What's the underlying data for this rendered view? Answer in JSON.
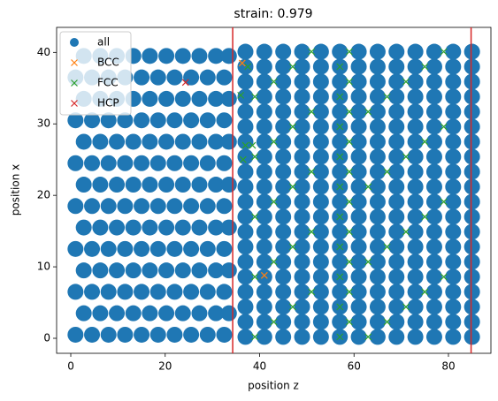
{
  "chart_data": {
    "type": "scatter",
    "title": "strain: 0.979",
    "xlabel": "position z",
    "ylabel": "position x",
    "xlim": [
      -3,
      89
    ],
    "ylim": [
      -2.1,
      43.5
    ],
    "xticks": [
      0,
      20,
      40,
      60,
      80
    ],
    "yticks": [
      0,
      10,
      20,
      30,
      40
    ],
    "vlines": [
      34.3,
      84.8
    ],
    "vline_color": "#d62728",
    "legend": "upper left",
    "series": [
      {
        "name": "all",
        "color": "#1f77b4",
        "marker": "o",
        "x": [
          1,
          4.5,
          8,
          11.5,
          15,
          18.5,
          22,
          25.5,
          29,
          32.5,
          2.75,
          6.25,
          9.75,
          13.25,
          16.75,
          20.25,
          23.75,
          27.25,
          30.75,
          33.5,
          1,
          4.5,
          8,
          11.5,
          15,
          18.5,
          22,
          25.5,
          29,
          32.5,
          2.75,
          6.25,
          9.75,
          13.25,
          16.75,
          20.25,
          23.75,
          27.25,
          30.75,
          33.5,
          1,
          4.5,
          8,
          11.5,
          15,
          18.5,
          22,
          25.5,
          29,
          32.5,
          2.75,
          6.25,
          9.75,
          13.25,
          16.75,
          20.25,
          23.75,
          27.25,
          30.75,
          33.5,
          1,
          4.5,
          8,
          11.5,
          15,
          18.5,
          22,
          25.5,
          29,
          32.5,
          2.75,
          6.25,
          9.75,
          13.25,
          16.75,
          20.25,
          23.75,
          27.25,
          30.75,
          33.5,
          1,
          4.5,
          8,
          11.5,
          15,
          18.5,
          22,
          25.5,
          29,
          32.5,
          2.75,
          6.25,
          9.75,
          13.25,
          16.75,
          20.25,
          23.75,
          27.25,
          30.75,
          33.5,
          1,
          4.5,
          8,
          11.5,
          15,
          18.5,
          22,
          25.5,
          29,
          32.5,
          2.75,
          6.25,
          9.75,
          13.25,
          16.75,
          20.25,
          23.75,
          27.25,
          30.75,
          33.5,
          1,
          4.5,
          8,
          11.5,
          15,
          18.5,
          22,
          25.5,
          29,
          32.5,
          2.75,
          6.25,
          9.75,
          13.25,
          16.75,
          20.25,
          23.75,
          27.25,
          30.75,
          33.5,
          37,
          41,
          45,
          49,
          53,
          57,
          61,
          65,
          69,
          73,
          77,
          81,
          85,
          37,
          41,
          45,
          49,
          53,
          57,
          61,
          65,
          69,
          73,
          77,
          81,
          85,
          37,
          41,
          45,
          49,
          53,
          57,
          61,
          65,
          69,
          73,
          77,
          81,
          85,
          37,
          41,
          45,
          49,
          53,
          57,
          61,
          65,
          69,
          73,
          77,
          81,
          85,
          37,
          41,
          45,
          49,
          53,
          57,
          61,
          65,
          69,
          73,
          77,
          81,
          85,
          37,
          41,
          45,
          49,
          53,
          57,
          61,
          65,
          69,
          73,
          77,
          81,
          85,
          37,
          41,
          45,
          49,
          53,
          57,
          61,
          65,
          69,
          73,
          77,
          81,
          85,
          37,
          41,
          45,
          49,
          53,
          57,
          61,
          65,
          69,
          73,
          77,
          81,
          85,
          37,
          41,
          45,
          49,
          53,
          57,
          61,
          65,
          69,
          73,
          77,
          81,
          85,
          37,
          41,
          45,
          49,
          53,
          57,
          61,
          65,
          69,
          73,
          77,
          81,
          85,
          37,
          41,
          45,
          49,
          53,
          57,
          61,
          65,
          69,
          73,
          77,
          81,
          85,
          37,
          41,
          45,
          49,
          53,
          57,
          61,
          65,
          69,
          73,
          77,
          81,
          85,
          37,
          41,
          45,
          49,
          53,
          57,
          61,
          65,
          69,
          73,
          77,
          81,
          85,
          37,
          41,
          45,
          49,
          53,
          57,
          61,
          65,
          69,
          73,
          77,
          81,
          85,
          37,
          41,
          45,
          49,
          53,
          57,
          61,
          65,
          69,
          73,
          77,
          81,
          85,
          37,
          41,
          45,
          49,
          53,
          57,
          61,
          65,
          69,
          73,
          77,
          81,
          85,
          37,
          41,
          45,
          49,
          53,
          57,
          61,
          65,
          69,
          73,
          77,
          81,
          85,
          37,
          41,
          45,
          49,
          53,
          57,
          61,
          65,
          69,
          73,
          77,
          81,
          85,
          37,
          41,
          45,
          49,
          53,
          57,
          61,
          65,
          69,
          73,
          77,
          81,
          85,
          37,
          41,
          45,
          49,
          53,
          57,
          61,
          65,
          69,
          73,
          77,
          81,
          85
        ],
        "y": [
          0.5,
          0.5,
          0.5,
          0.5,
          0.5,
          0.5,
          0.5,
          0.5,
          0.5,
          0.5,
          3.5,
          3.5,
          3.5,
          3.5,
          3.5,
          3.5,
          3.5,
          3.5,
          3.5,
          3.5,
          6.5,
          6.5,
          6.5,
          6.5,
          6.5,
          6.5,
          6.5,
          6.5,
          6.5,
          6.5,
          9.5,
          9.5,
          9.5,
          9.5,
          9.5,
          9.5,
          9.5,
          9.5,
          9.5,
          9.5,
          12.5,
          12.5,
          12.5,
          12.5,
          12.5,
          12.5,
          12.5,
          12.5,
          12.5,
          12.5,
          15.5,
          15.5,
          15.5,
          15.5,
          15.5,
          15.5,
          15.5,
          15.5,
          15.5,
          15.5,
          18.5,
          18.5,
          18.5,
          18.5,
          18.5,
          18.5,
          18.5,
          18.5,
          18.5,
          18.5,
          21.5,
          21.5,
          21.5,
          21.5,
          21.5,
          21.5,
          21.5,
          21.5,
          21.5,
          21.5,
          24.5,
          24.5,
          24.5,
          24.5,
          24.5,
          24.5,
          24.5,
          24.5,
          24.5,
          24.5,
          27.5,
          27.5,
          27.5,
          27.5,
          27.5,
          27.5,
          27.5,
          27.5,
          27.5,
          27.5,
          30.5,
          30.5,
          30.5,
          30.5,
          30.5,
          30.5,
          30.5,
          30.5,
          30.5,
          30.5,
          33.5,
          33.5,
          33.5,
          33.5,
          33.5,
          33.5,
          33.5,
          33.5,
          33.5,
          33.5,
          36.5,
          36.5,
          36.5,
          36.5,
          36.5,
          36.5,
          36.5,
          36.5,
          36.5,
          36.5,
          39.5,
          39.5,
          39.5,
          39.5,
          39.5,
          39.5,
          39.5,
          39.5,
          39.5,
          39.5,
          0.2,
          0.2,
          0.2,
          0.2,
          0.2,
          0.2,
          0.2,
          0.2,
          0.2,
          0.2,
          0.2,
          0.2,
          0.2,
          2.3,
          2.3,
          2.3,
          2.3,
          2.3,
          2.3,
          2.3,
          2.3,
          2.3,
          2.3,
          2.3,
          2.3,
          2.3,
          4.4,
          4.4,
          4.4,
          4.4,
          4.4,
          4.4,
          4.4,
          4.4,
          4.4,
          4.4,
          4.4,
          4.4,
          4.4,
          6.5,
          6.5,
          6.5,
          6.5,
          6.5,
          6.5,
          6.5,
          6.5,
          6.5,
          6.5,
          6.5,
          6.5,
          6.5,
          8.6,
          8.6,
          8.6,
          8.6,
          8.6,
          8.6,
          8.6,
          8.6,
          8.6,
          8.6,
          8.6,
          8.6,
          8.6,
          10.7,
          10.7,
          10.7,
          10.7,
          10.7,
          10.7,
          10.7,
          10.7,
          10.7,
          10.7,
          10.7,
          10.7,
          10.7,
          12.8,
          12.8,
          12.8,
          12.8,
          12.8,
          12.8,
          12.8,
          12.8,
          12.8,
          12.8,
          12.8,
          12.8,
          12.8,
          14.9,
          14.9,
          14.9,
          14.9,
          14.9,
          14.9,
          14.9,
          14.9,
          14.9,
          14.9,
          14.9,
          14.9,
          14.9,
          17,
          17,
          17,
          17,
          17,
          17,
          17,
          17,
          17,
          17,
          17,
          17,
          17,
          19.1,
          19.1,
          19.1,
          19.1,
          19.1,
          19.1,
          19.1,
          19.1,
          19.1,
          19.1,
          19.1,
          19.1,
          19.1,
          21.2,
          21.2,
          21.2,
          21.2,
          21.2,
          21.2,
          21.2,
          21.2,
          21.2,
          21.2,
          21.2,
          21.2,
          21.2,
          23.3,
          23.3,
          23.3,
          23.3,
          23.3,
          23.3,
          23.3,
          23.3,
          23.3,
          23.3,
          23.3,
          23.3,
          23.3,
          25.4,
          25.4,
          25.4,
          25.4,
          25.4,
          25.4,
          25.4,
          25.4,
          25.4,
          25.4,
          25.4,
          25.4,
          25.4,
          27.5,
          27.5,
          27.5,
          27.5,
          27.5,
          27.5,
          27.5,
          27.5,
          27.5,
          27.5,
          27.5,
          27.5,
          27.5,
          29.6,
          29.6,
          29.6,
          29.6,
          29.6,
          29.6,
          29.6,
          29.6,
          29.6,
          29.6,
          29.6,
          29.6,
          29.6,
          31.7,
          31.7,
          31.7,
          31.7,
          31.7,
          31.7,
          31.7,
          31.7,
          31.7,
          31.7,
          31.7,
          31.7,
          31.7,
          33.8,
          33.8,
          33.8,
          33.8,
          33.8,
          33.8,
          33.8,
          33.8,
          33.8,
          33.8,
          33.8,
          33.8,
          33.8,
          35.9,
          35.9,
          35.9,
          35.9,
          35.9,
          35.9,
          35.9,
          35.9,
          35.9,
          35.9,
          35.9,
          35.9,
          35.9,
          38,
          38,
          38,
          38,
          38,
          38,
          38,
          38,
          38,
          38,
          38,
          38,
          38,
          40.1,
          40.1,
          40.1,
          40.1,
          40.1,
          40.1,
          40.1,
          40.1,
          40.1,
          40.1,
          40.1,
          40.1,
          40.1
        ]
      },
      {
        "name": "BCC",
        "color": "#ff7f0e",
        "marker": "x",
        "x": [
          36.3,
          41
        ],
        "y": [
          38.5,
          8.8
        ]
      },
      {
        "name": "FCC",
        "color": "#2ca02c",
        "marker": "x",
        "x": [
          39,
          63,
          57,
          43,
          67,
          59,
          47,
          71,
          57,
          51,
          75,
          59,
          39,
          79,
          57,
          43,
          63,
          59,
          47,
          67,
          57,
          51,
          71,
          59,
          39,
          75,
          57,
          43,
          79,
          59,
          47,
          63,
          57,
          51,
          67,
          59,
          39,
          71,
          57,
          43,
          75,
          59,
          47,
          79,
          57,
          51,
          63,
          59,
          39,
          67,
          57,
          43,
          71,
          59,
          47,
          75,
          57,
          51,
          79,
          59,
          36.5,
          37,
          38.5,
          36,
          37.5
        ],
        "y": [
          0.2,
          0.2,
          0.2,
          2.3,
          2.3,
          2.3,
          4.4,
          4.4,
          4.4,
          6.5,
          6.5,
          6.5,
          8.6,
          8.6,
          8.6,
          10.7,
          10.7,
          10.7,
          12.8,
          12.8,
          12.8,
          14.9,
          14.9,
          14.9,
          17,
          17,
          17,
          19.1,
          19.1,
          19.1,
          21.2,
          21.2,
          21.2,
          23.3,
          23.3,
          23.3,
          25.4,
          25.4,
          25.4,
          27.5,
          27.5,
          27.5,
          29.6,
          29.6,
          29.6,
          31.7,
          31.7,
          31.7,
          33.8,
          33.8,
          33.8,
          35.9,
          35.9,
          35.9,
          38,
          38,
          38,
          40.1,
          40.1,
          40.1,
          25,
          27,
          27,
          34,
          38
        ]
      },
      {
        "name": "HCP",
        "color": "#d62728",
        "marker": "x",
        "x": [
          24.3
        ],
        "y": [
          35.8
        ]
      }
    ]
  }
}
